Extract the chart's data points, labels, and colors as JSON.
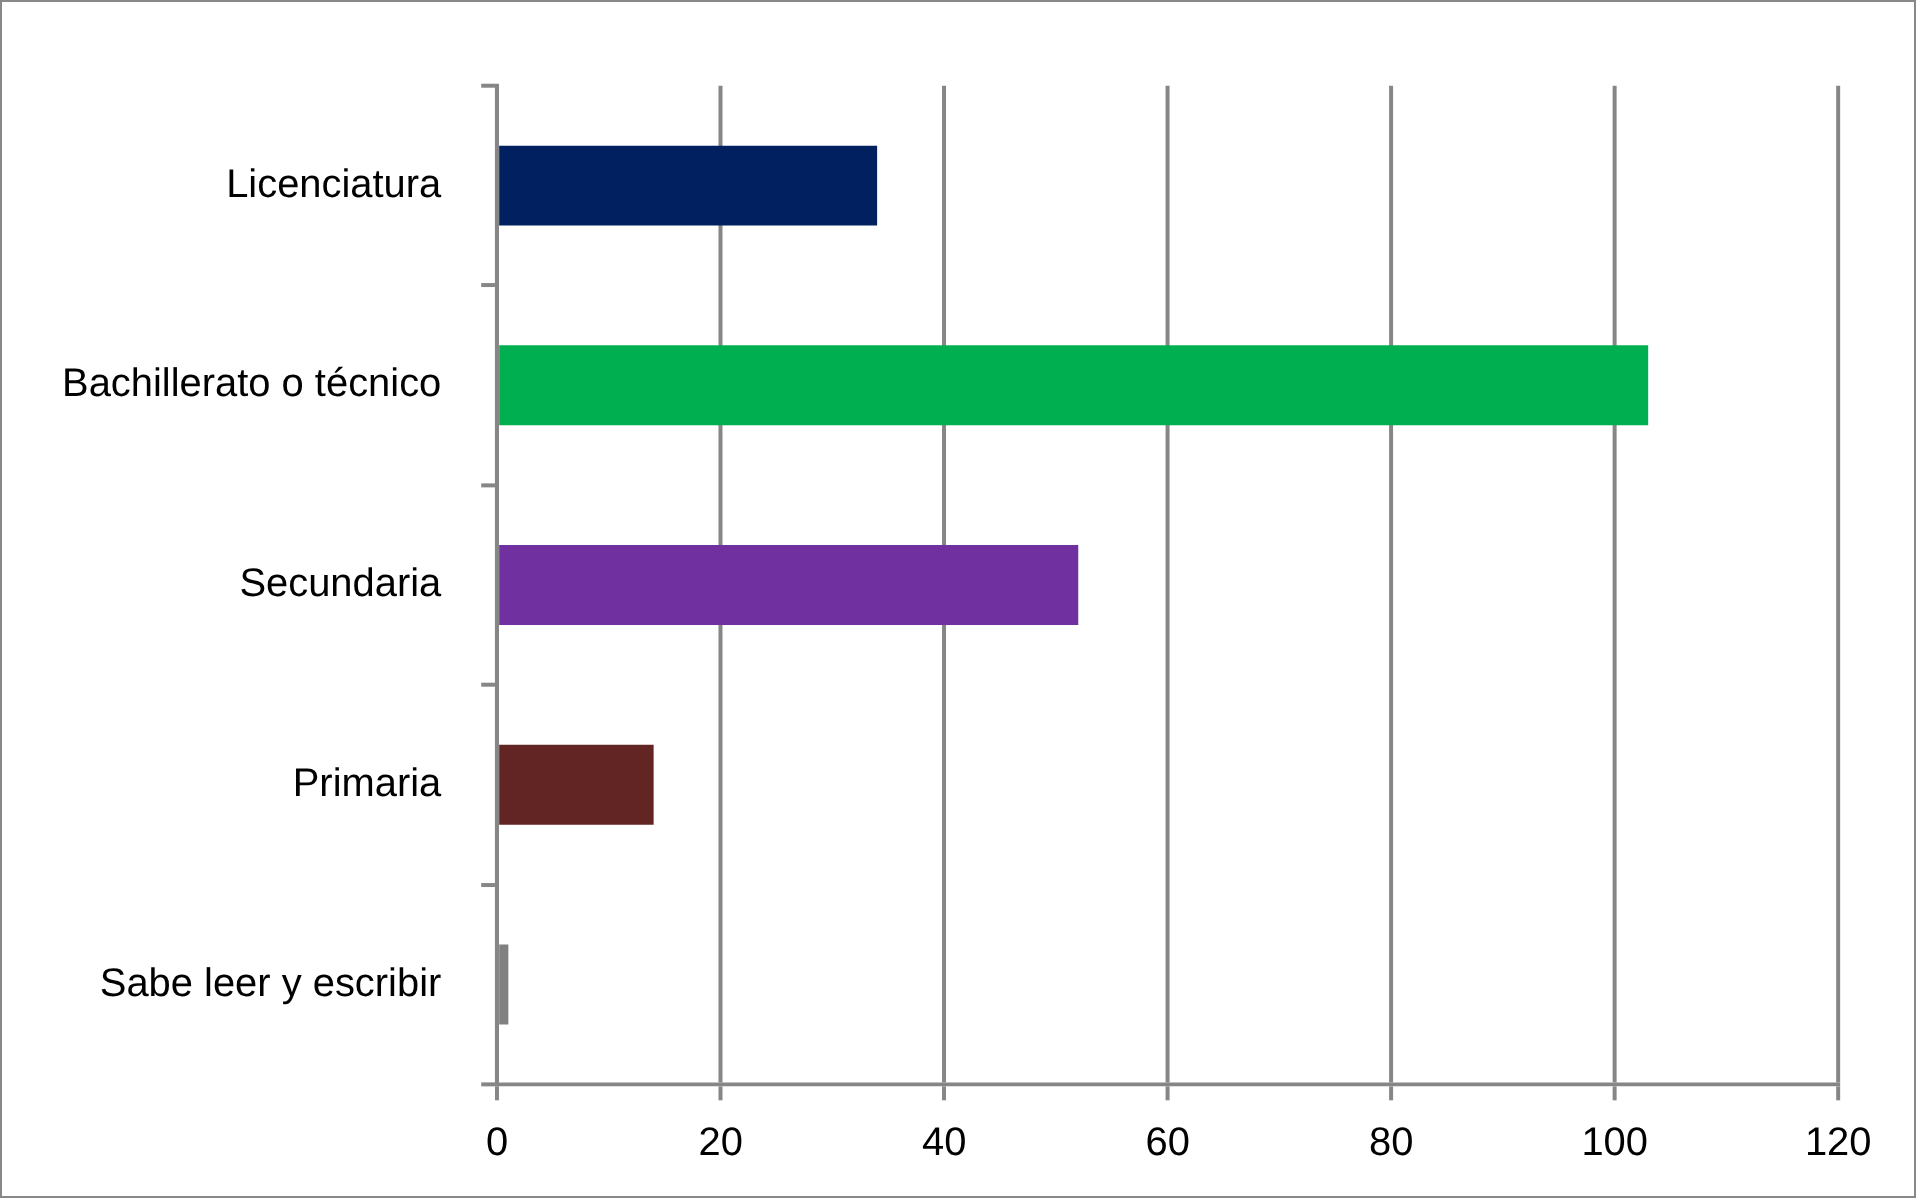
{
  "chart_data": {
    "type": "bar",
    "orientation": "horizontal",
    "categories": [
      "Licenciatura",
      "Bachillerato o técnico",
      "Secundaria",
      "Primaria",
      "Sabe leer y escribir"
    ],
    "values": [
      34,
      103,
      52,
      14,
      1
    ],
    "colors": [
      "#002060",
      "#00b050",
      "#7030a0",
      "#632523",
      "#808080"
    ],
    "xlim": [
      0,
      120
    ],
    "xticks": [
      0,
      20,
      40,
      60,
      80,
      100,
      120
    ],
    "grid": "x",
    "legend": false
  }
}
